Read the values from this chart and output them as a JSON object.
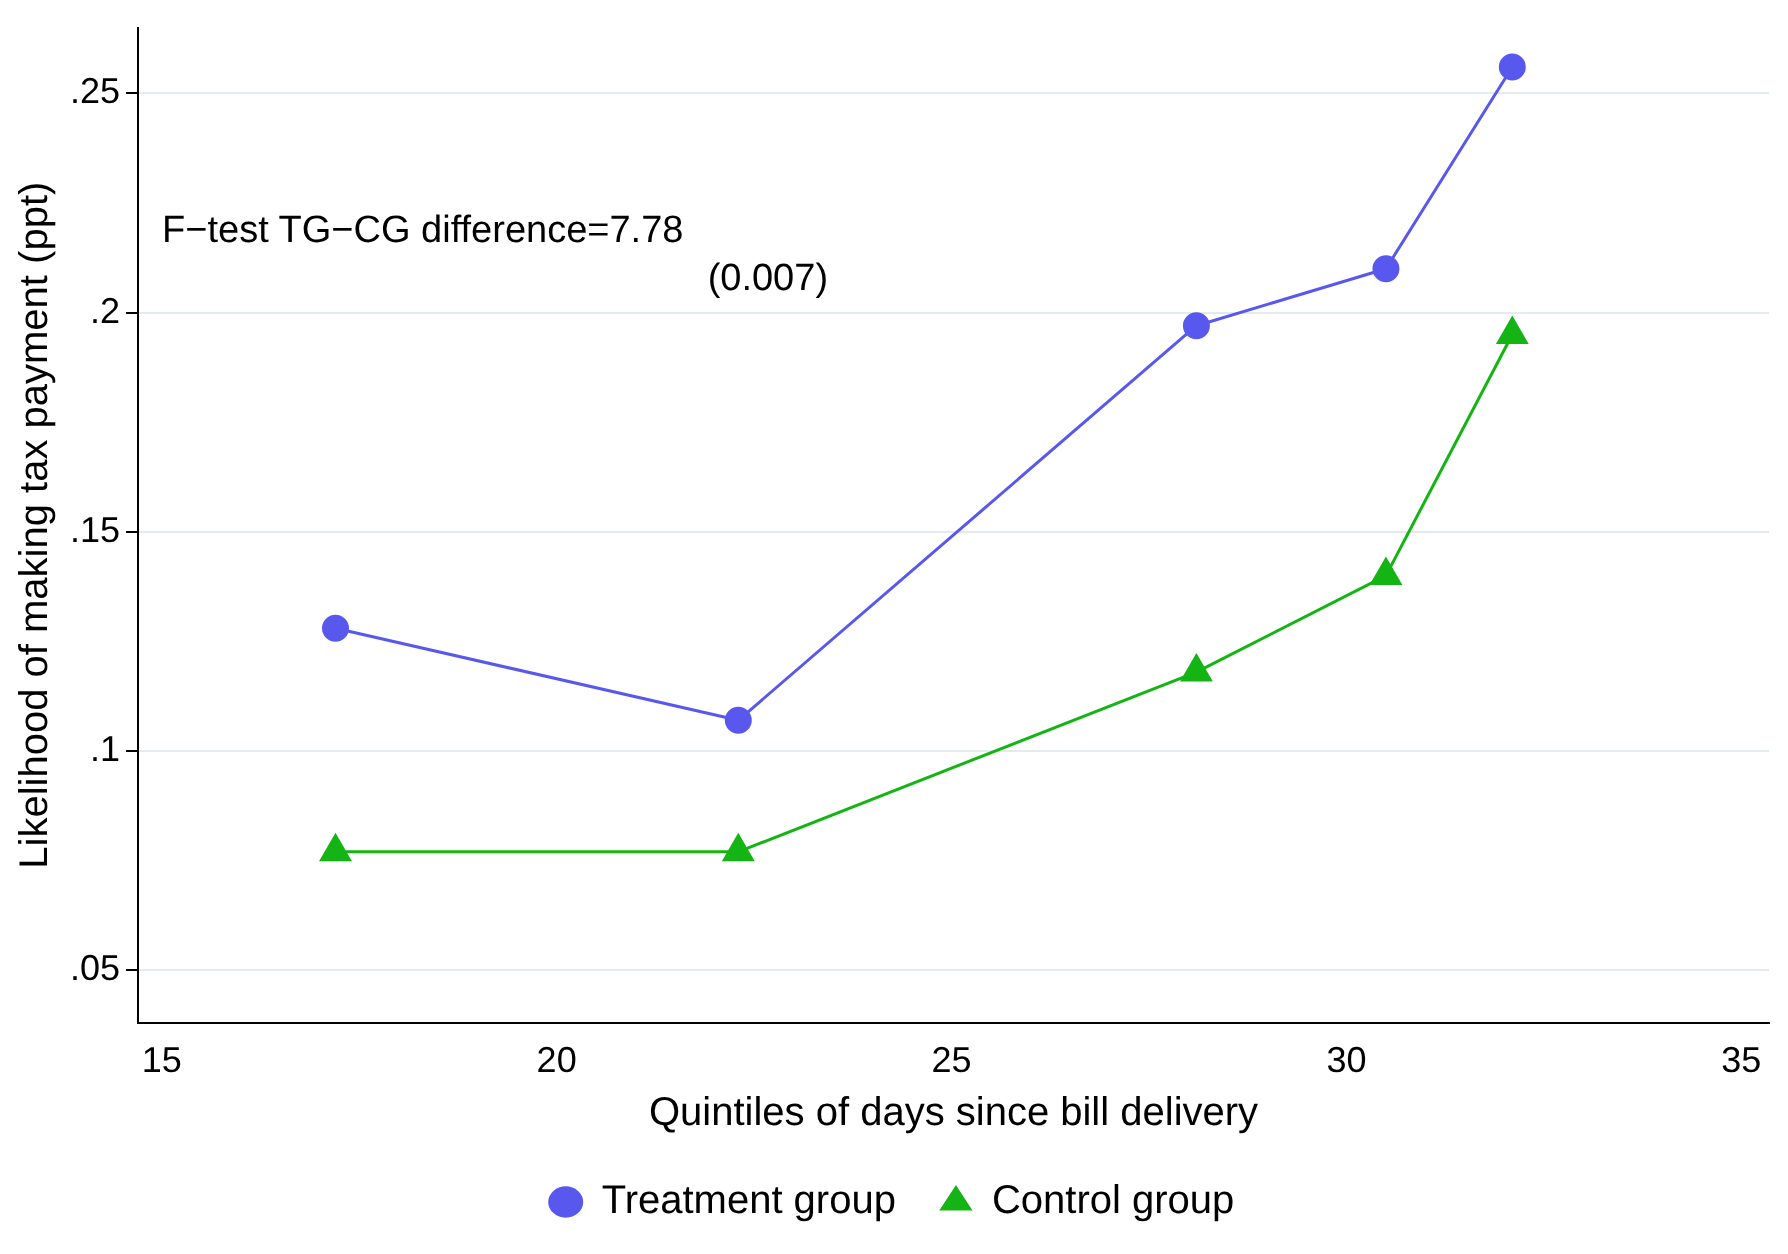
{
  "chart_data": {
    "type": "line",
    "xlabel": "Quintiles of days since bill delivery",
    "ylabel": "Likelihood of making tax payment (ppt)",
    "annotations": [
      "F−test TG−CG difference=7.78",
      "(0.007)"
    ],
    "xlim": [
      14.7,
      35.35
    ],
    "xticks": [
      15,
      20,
      25,
      30,
      35
    ],
    "ylim": [
      0.038,
      0.265
    ],
    "yticks": [
      {
        "value": 0.05,
        "label": ".05"
      },
      {
        "value": 0.1,
        "label": ".1"
      },
      {
        "value": 0.15,
        "label": ".15"
      },
      {
        "value": 0.2,
        "label": ".2"
      },
      {
        "value": 0.25,
        "label": ".25"
      }
    ],
    "grid": "y",
    "legend": "bottom",
    "series": [
      {
        "name": "Treatment group",
        "color": "#5858ee",
        "marker": "circle",
        "x": [
          17.2,
          22.3,
          28.1,
          30.5,
          32.1
        ],
        "values": [
          0.128,
          0.107,
          0.197,
          0.21,
          0.256
        ]
      },
      {
        "name": "Control group",
        "color": "#14b414",
        "marker": "triangle",
        "x": [
          17.2,
          22.3,
          28.1,
          30.5,
          32.1
        ],
        "values": [
          0.077,
          0.077,
          0.118,
          0.14,
          0.195
        ]
      }
    ]
  }
}
